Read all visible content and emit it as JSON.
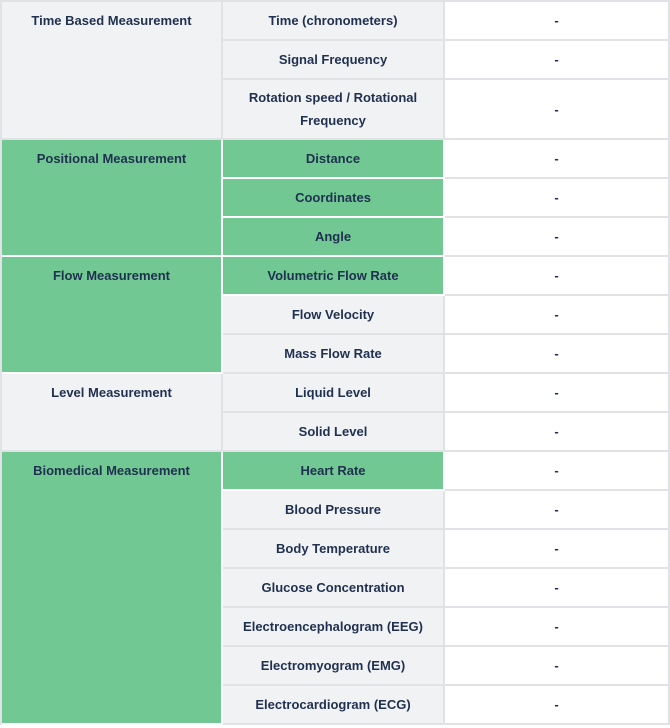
{
  "colors": {
    "highlight_green": "#72c893",
    "row_gray": "#f1f2f4",
    "value_white": "#ffffff",
    "text_navy": "#1f3050",
    "border_gray": "#e0e2e6",
    "border_on_green": "#ffffff"
  },
  "table": {
    "groups": [
      {
        "category": "Time Based Measurement",
        "category_highlight": false,
        "items": [
          {
            "label": "Time (chronometers)",
            "highlight": false,
            "value": "-"
          },
          {
            "label": "Signal Frequency",
            "highlight": false,
            "value": "-"
          },
          {
            "label": "Rotation speed / Rotational Frequency",
            "highlight": false,
            "value": "-"
          }
        ]
      },
      {
        "category": "Positional Measurement",
        "category_highlight": true,
        "items": [
          {
            "label": "Distance",
            "highlight": true,
            "value": "-"
          },
          {
            "label": "Coordinates",
            "highlight": true,
            "value": "-"
          },
          {
            "label": "Angle",
            "highlight": true,
            "value": "-"
          }
        ]
      },
      {
        "category": "Flow Measurement",
        "category_highlight": true,
        "items": [
          {
            "label": "Volumetric Flow Rate",
            "highlight": true,
            "value": "-"
          },
          {
            "label": "Flow Velocity",
            "highlight": false,
            "value": "-"
          },
          {
            "label": "Mass Flow Rate",
            "highlight": false,
            "value": "-"
          }
        ]
      },
      {
        "category": "Level Measurement",
        "category_highlight": false,
        "items": [
          {
            "label": "Liquid Level",
            "highlight": false,
            "value": "-"
          },
          {
            "label": "Solid Level",
            "highlight": false,
            "value": "-"
          }
        ]
      },
      {
        "category": "Biomedical Measurement",
        "category_highlight": true,
        "items": [
          {
            "label": "Heart Rate",
            "highlight": true,
            "value": "-"
          },
          {
            "label": "Blood Pressure",
            "highlight": false,
            "value": "-"
          },
          {
            "label": "Body Temperature",
            "highlight": false,
            "value": "-"
          },
          {
            "label": "Glucose Concentration",
            "highlight": false,
            "value": "-"
          },
          {
            "label": "Electroencephalogram (EEG)",
            "highlight": false,
            "value": "-"
          },
          {
            "label": "Electromyogram (EMG)",
            "highlight": false,
            "value": "-"
          },
          {
            "label": "Electrocardiogram (ECG)",
            "highlight": false,
            "value": "-"
          }
        ]
      }
    ]
  }
}
